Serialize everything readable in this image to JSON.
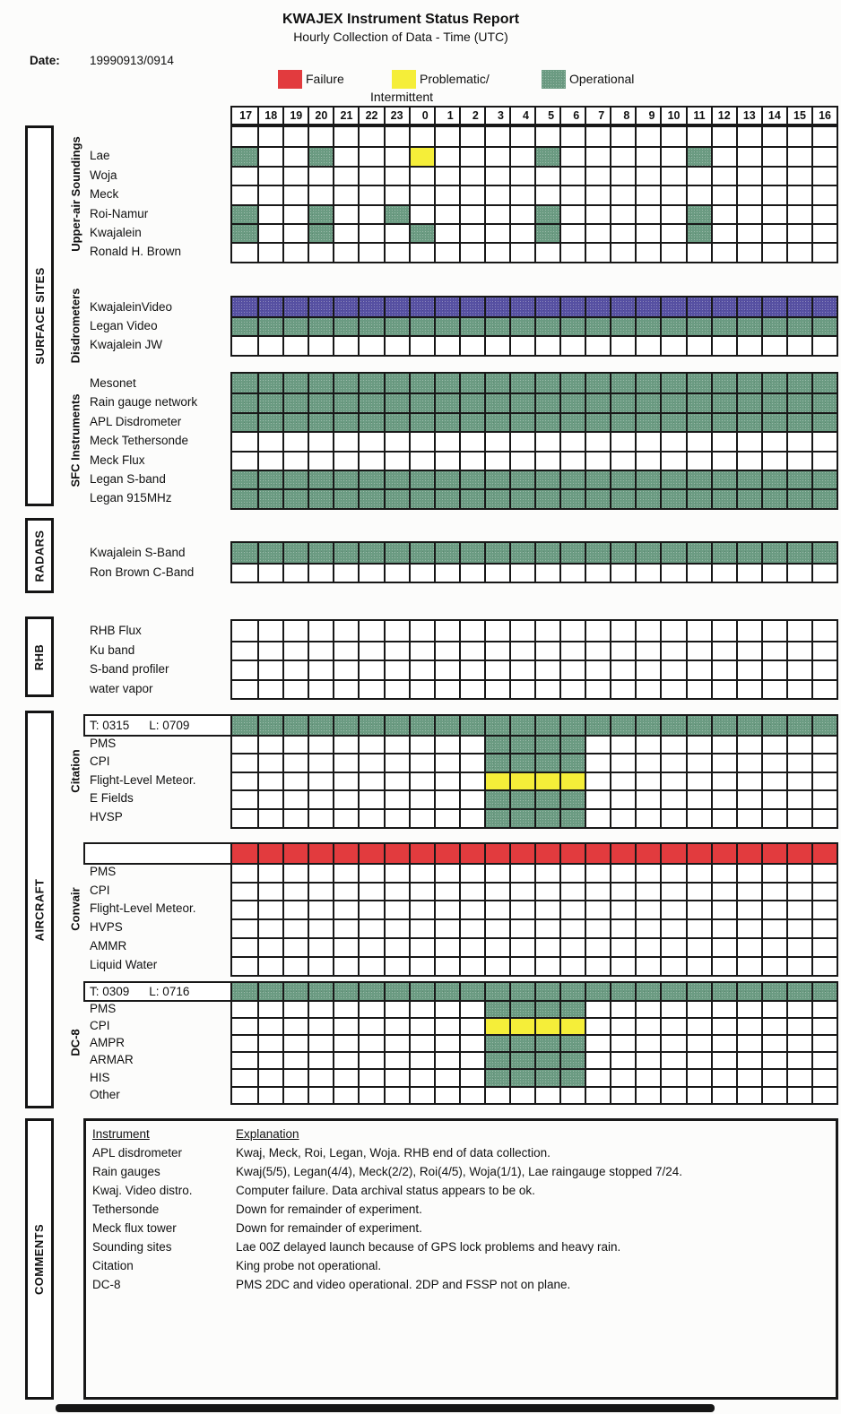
{
  "title": "KWAJEX Instrument Status Report",
  "subtitle": "Hourly Collection of Data - Time (UTC)",
  "date_label": "Date:",
  "date_value": "19990913/0914",
  "legend": [
    {
      "label": "Failure",
      "label2": "",
      "color": "#e23b3e"
    },
    {
      "label": "Problematic/",
      "label2": "Intermittent",
      "color": "#f5ee39"
    },
    {
      "label": "Operational",
      "label2": "",
      "color": "#6b9b82"
    }
  ],
  "status_colors": {
    "O": "#6b9b82",
    "P": "#f5ee39",
    "F": "#e23b3e",
    "V": "#5650a2"
  },
  "status_code_meanings": {
    "O": "Operational",
    "P": "Problematic/Intermittent",
    "F": "Failure",
    "V": "Video (computer failure - archival ok)"
  },
  "grid": {
    "hours": [
      "17",
      "18",
      "19",
      "20",
      "21",
      "22",
      "23",
      "0",
      "1",
      "2",
      "3",
      "4",
      "5",
      "6",
      "7",
      "8",
      "9",
      "10",
      "11",
      "12",
      "13",
      "14",
      "15",
      "16"
    ]
  },
  "sections": {
    "surface_sites": {
      "label": "SURFACE SITES",
      "blocks": {
        "upper_air": {
          "sublabel": "Upper-air Soundings",
          "rows": [
            {
              "label": "",
              "cells": {}
            },
            {
              "label": "Lae",
              "cells": {
                "17": "O",
                "20": "O",
                "0": "P",
                "5": "O",
                "11": "O"
              }
            },
            {
              "label": "Woja",
              "cells": {}
            },
            {
              "label": "Meck",
              "cells": {}
            },
            {
              "label": "Roi-Namur",
              "cells": {
                "17": "O",
                "20": "O",
                "23": "O",
                "5": "O",
                "11": "O"
              }
            },
            {
              "label": "Kwajalein",
              "cells": {
                "17": "O",
                "20": "O",
                "0": "O",
                "5": "O",
                "11": "O"
              }
            },
            {
              "label": "Ronald H. Brown",
              "cells": {}
            }
          ]
        },
        "disdrometers": {
          "sublabel": "Disdrometers",
          "rows": [
            {
              "label": "KwajaleinVideo",
              "all": "V"
            },
            {
              "label": "Legan Video",
              "all": "O"
            },
            {
              "label": "Kwajalein JW",
              "cells": {}
            }
          ]
        },
        "sfc": {
          "sublabel": "SFC Instruments",
          "rows": [
            {
              "label": "Mesonet",
              "all": "O"
            },
            {
              "label": "Rain gauge network",
              "all": "O"
            },
            {
              "label": "APL Disdrometer",
              "all": "O"
            },
            {
              "label": "Meck Tethersonde",
              "cells": {}
            },
            {
              "label": "Meck Flux",
              "cells": {}
            },
            {
              "label": "Legan S-band",
              "all": "O"
            },
            {
              "label": "Legan 915MHz",
              "all": "O"
            }
          ]
        }
      }
    },
    "radars": {
      "label": "RADARS",
      "blocks": {
        "main": {
          "sublabel": "",
          "rows": [
            {
              "label": "Kwajalein S-Band",
              "all": "O"
            },
            {
              "label": "Ron Brown C-Band",
              "cells": {}
            }
          ]
        }
      }
    },
    "rhb": {
      "label": "RHB",
      "blocks": {
        "main": {
          "sublabel": "",
          "rows": [
            {
              "label": "RHB Flux",
              "cells": {}
            },
            {
              "label": "Ku band",
              "cells": {}
            },
            {
              "label": "S-band profiler",
              "cells": {}
            },
            {
              "label": "water vapor",
              "cells": {}
            }
          ]
        }
      }
    },
    "aircraft": {
      "label": "AIRCRAFT",
      "blocks": {
        "citation": {
          "sublabel": "Citation",
          "rows": [
            {
              "label": "",
              "label_box": {
                "t": "T: 0315",
                "l": "L: 0709"
              },
              "all": "O"
            },
            {
              "label": "PMS",
              "cells": {
                "3": "O",
                "4": "O",
                "5": "O",
                "6": "O"
              }
            },
            {
              "label": "CPI",
              "cells": {
                "3": "O",
                "4": "O",
                "5": "O",
                "6": "O"
              }
            },
            {
              "label": "Flight-Level Meteor.",
              "cells": {
                "3": "P",
                "4": "P",
                "5": "P",
                "6": "P"
              }
            },
            {
              "label": "E Fields",
              "cells": {
                "3": "O",
                "4": "O",
                "5": "O",
                "6": "O"
              }
            },
            {
              "label": "HVSP",
              "cells": {
                "3": "O",
                "4": "O",
                "5": "O",
                "6": "O"
              }
            }
          ]
        },
        "convair": {
          "sublabel": "Convair",
          "rows": [
            {
              "label": "",
              "label_box": {
                "t": "",
                "l": ""
              },
              "all": "F"
            },
            {
              "label": "PMS",
              "cells": {}
            },
            {
              "label": "CPI",
              "cells": {}
            },
            {
              "label": "Flight-Level Meteor.",
              "cells": {}
            },
            {
              "label": "HVPS",
              "cells": {}
            },
            {
              "label": "AMMR",
              "cells": {}
            },
            {
              "label": "Liquid Water",
              "cells": {}
            }
          ]
        },
        "dc8": {
          "sublabel": "DC-8",
          "rows": [
            {
              "label": "",
              "label_box": {
                "t": "T: 0309",
                "l": "L: 0716"
              },
              "all": "O"
            },
            {
              "label": "PMS",
              "cells": {
                "3": "O",
                "4": "O",
                "5": "O",
                "6": "O"
              }
            },
            {
              "label": "CPI",
              "cells": {
                "3": "P",
                "4": "P",
                "5": "P",
                "6": "P"
              }
            },
            {
              "label": "AMPR",
              "cells": {
                "3": "O",
                "4": "O",
                "5": "O",
                "6": "O"
              }
            },
            {
              "label": "ARMAR",
              "cells": {
                "3": "O",
                "4": "O",
                "5": "O",
                "6": "O"
              }
            },
            {
              "label": "HIS",
              "cells": {
                "3": "O",
                "4": "O",
                "5": "O",
                "6": "O"
              }
            },
            {
              "label": "Other",
              "cells": {}
            }
          ]
        }
      }
    },
    "comments": {
      "label": "COMMENTS",
      "headers": {
        "instrument": "Instrument",
        "explanation": "Explanation"
      },
      "rows": [
        {
          "instrument": "APL disdrometer",
          "explanation": "Kwaj, Meck, Roi, Legan, Woja. RHB end of data collection."
        },
        {
          "instrument": "Rain gauges",
          "explanation": "Kwaj(5/5), Legan(4/4), Meck(2/2), Roi(4/5), Woja(1/1), Lae raingauge stopped 7/24."
        },
        {
          "instrument": "Kwaj. Video distro.",
          "explanation": "Computer failure. Data archival status appears to be ok."
        },
        {
          "instrument": "Tethersonde",
          "explanation": "Down for remainder of experiment."
        },
        {
          "instrument": "Meck flux tower",
          "explanation": "Down for remainder of experiment."
        },
        {
          "instrument": "Sounding sites",
          "explanation": "Lae 00Z delayed launch because of GPS lock problems and heavy rain."
        },
        {
          "instrument": "Citation",
          "explanation": "King probe not operational."
        },
        {
          "instrument": "DC-8",
          "explanation": "PMS 2DC and video operational. 2DP and FSSP not on plane."
        }
      ]
    }
  }
}
